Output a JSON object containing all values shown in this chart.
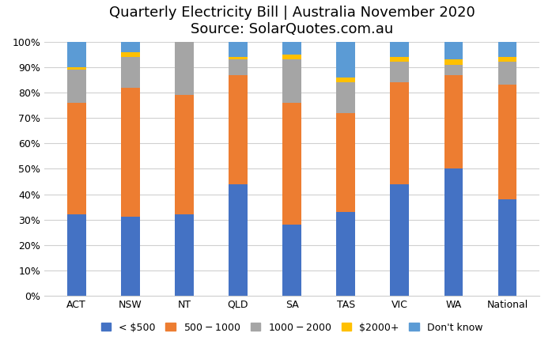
{
  "categories": [
    "ACT",
    "NSW",
    "NT",
    "QLD",
    "SA",
    "TAS",
    "VIC",
    "WA",
    "National"
  ],
  "series": {
    "< $500": [
      32,
      31,
      32,
      44,
      28,
      33,
      44,
      50,
      38
    ],
    "$500 - $1000": [
      44,
      51,
      47,
      43,
      48,
      39,
      40,
      37,
      45
    ],
    "$1000- $2000": [
      13,
      12,
      21,
      6,
      17,
      12,
      8,
      4,
      9
    ],
    "$2000+": [
      1,
      2,
      0,
      1,
      2,
      2,
      2,
      2,
      2
    ],
    "Don't know": [
      10,
      4,
      0,
      6,
      5,
      14,
      6,
      7,
      6
    ]
  },
  "colors": {
    "< $500": "#4472c4",
    "$500 - $1000": "#ed7d31",
    "$1000- $2000": "#a5a5a5",
    "$2000+": "#ffc000",
    "Don't know": "#5b9bd5"
  },
  "title_line1": "Quarterly Electricity Bill | Australia November 2020",
  "title_line2": "Source: SolarQuotes.com.au",
  "ylim": [
    0,
    100
  ],
  "ytick_labels": [
    "0%",
    "10%",
    "20%",
    "30%",
    "40%",
    "50%",
    "60%",
    "70%",
    "80%",
    "90%",
    "100%"
  ],
  "title_fontsize": 13,
  "legend_fontsize": 9,
  "tick_fontsize": 9,
  "bar_width": 0.35
}
